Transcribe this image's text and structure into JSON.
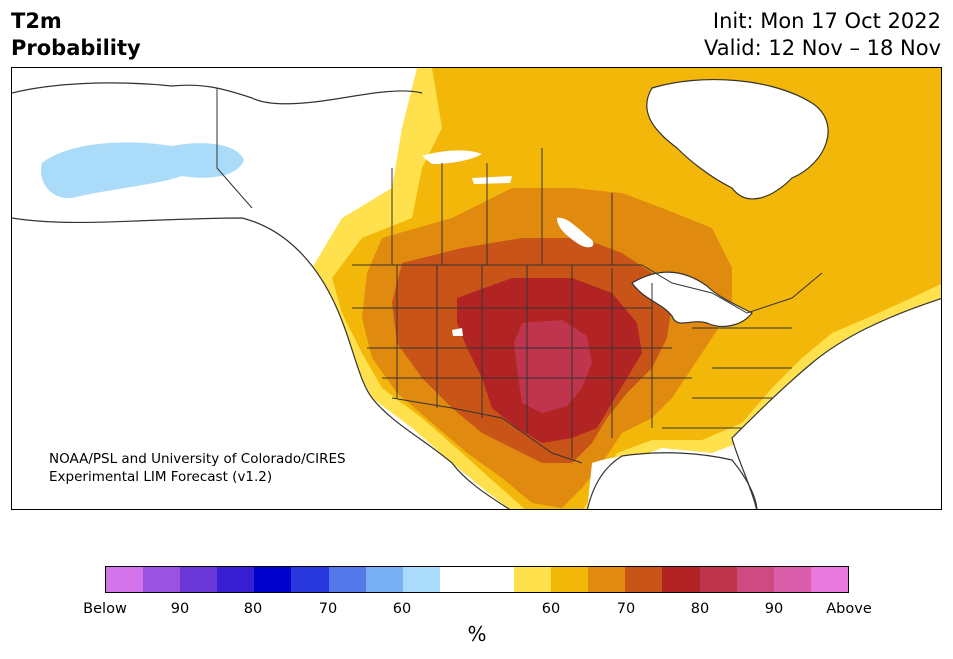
{
  "title_left": [
    "T2m",
    "Probability"
  ],
  "title_right": [
    "Init: Mon 17 Oct 2022",
    "Valid: 12 Nov – 18 Nov"
  ],
  "credit": [
    "NOAA/PSL and University of Colorado/CIRES",
    "Experimental LIM Forecast (v1.2)"
  ],
  "colorbar": {
    "colors": [
      "#d474ea",
      "#9a53e0",
      "#6b38d8",
      "#3a1ed4",
      "#0000cc",
      "#2838dc",
      "#5278ea",
      "#78b0f5",
      "#aadcfa",
      "#ffffff",
      "#ffffff",
      "#ffe14d",
      "#f3b70a",
      "#e08a10",
      "#c85418",
      "#b22424",
      "#c0354e",
      "#ce4a82",
      "#da5eaa",
      "#e878dc"
    ],
    "tick_labels": [
      "Below",
      "90",
      "80",
      "70",
      "60",
      "60",
      "70",
      "80",
      "90",
      "Above"
    ],
    "unit": "%"
  },
  "map": {
    "colors": {
      "land_neutral": "#ffffff",
      "light_blue": "#aadcfa",
      "blue": "#78b0f5",
      "yellow": "#ffe14d",
      "gold": "#f3b70a",
      "orange": "#e08a10",
      "dark_orange": "#c85418",
      "red": "#b22424",
      "crimson": "#c0354e",
      "water": "#ffffff",
      "border_line": "#333333"
    }
  }
}
